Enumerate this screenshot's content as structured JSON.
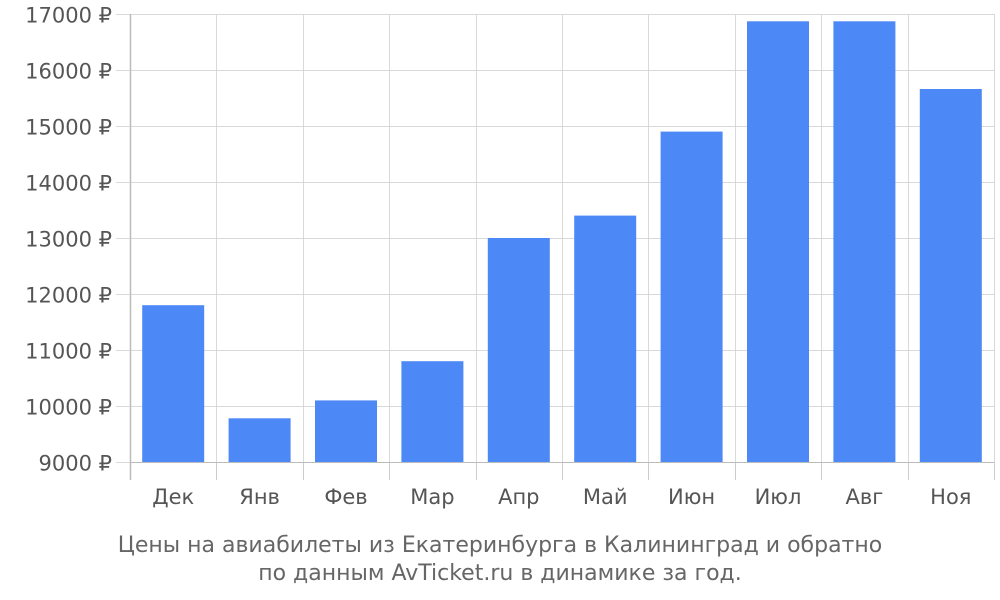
{
  "chart_data": {
    "type": "bar",
    "categories": [
      "Дек",
      "Янв",
      "Фев",
      "Мар",
      "Апр",
      "Май",
      "Июн",
      "Июл",
      "Авг",
      "Ноя"
    ],
    "values": [
      11800,
      9780,
      10100,
      10800,
      13000,
      13400,
      14900,
      16870,
      16870,
      15660
    ],
    "ylim": [
      9000,
      17000
    ],
    "yticks": [
      9000,
      10000,
      11000,
      12000,
      13000,
      14000,
      15000,
      16000,
      17000
    ],
    "ytick_labels": [
      "9000 ₽",
      "10000 ₽",
      "11000 ₽",
      "12000 ₽",
      "13000 ₽",
      "14000 ₽",
      "15000 ₽",
      "16000 ₽",
      "17000 ₽"
    ],
    "grid": true,
    "bar_color": "#4d88f7",
    "caption_line1": "Цены на авиабилеты из Екатеринбурга в Калининград и обратно",
    "caption_line2": "по данным AvTicket.ru в динамике за год."
  }
}
